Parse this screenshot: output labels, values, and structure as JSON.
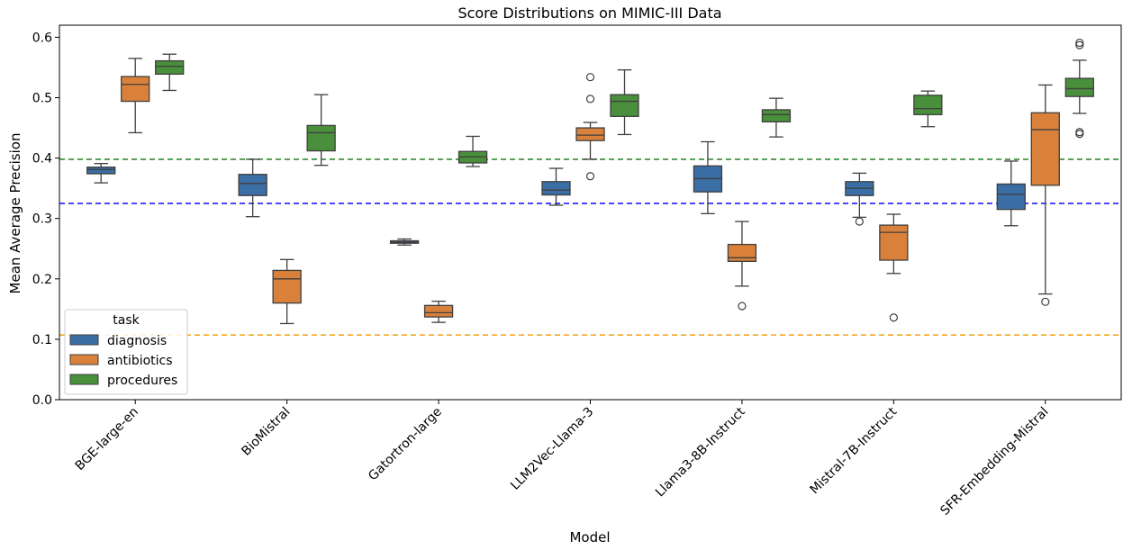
{
  "chart_data": {
    "type": "box",
    "title": "Score Distributions on MIMIC-III Data",
    "xlabel": "Model",
    "ylabel": "Mean Average Precision",
    "ylim": [
      0.0,
      0.62
    ],
    "yticks": [
      "0.0",
      "0.1",
      "0.2",
      "0.3",
      "0.4",
      "0.5",
      "0.6"
    ],
    "categories": [
      "BGE-large-en",
      "BioMistral",
      "Gatortron-large",
      "LLM2Vec-Llama-3",
      "Llama3-8B-Instruct",
      "Mistral-7B-Instruct",
      "SFR-Embedding-Mistral"
    ],
    "legend": {
      "title": "task",
      "position": "lower-left"
    },
    "series": [
      {
        "name": "diagnosis",
        "color": "#3a6ea5",
        "boxes": [
          {
            "whislo": 0.359,
            "q1": 0.374,
            "med": 0.381,
            "q3": 0.385,
            "whishi": 0.391,
            "fliers": []
          },
          {
            "whislo": 0.303,
            "q1": 0.338,
            "med": 0.358,
            "q3": 0.373,
            "whishi": 0.398,
            "fliers": []
          },
          {
            "whislo": 0.256,
            "q1": 0.259,
            "med": 0.261,
            "q3": 0.263,
            "whishi": 0.266,
            "fliers": []
          },
          {
            "whislo": 0.322,
            "q1": 0.339,
            "med": 0.347,
            "q3": 0.361,
            "whishi": 0.383,
            "fliers": []
          },
          {
            "whislo": 0.308,
            "q1": 0.344,
            "med": 0.366,
            "q3": 0.387,
            "whishi": 0.427,
            "fliers": []
          },
          {
            "whislo": 0.302,
            "q1": 0.338,
            "med": 0.35,
            "q3": 0.361,
            "whishi": 0.375,
            "fliers": [
              0.295
            ]
          },
          {
            "whislo": 0.288,
            "q1": 0.315,
            "med": 0.34,
            "q3": 0.357,
            "whishi": 0.395,
            "fliers": []
          }
        ]
      },
      {
        "name": "antibiotics",
        "color": "#d9813a",
        "boxes": [
          {
            "whislo": 0.442,
            "q1": 0.494,
            "med": 0.522,
            "q3": 0.535,
            "whishi": 0.565,
            "fliers": []
          },
          {
            "whislo": 0.126,
            "q1": 0.16,
            "med": 0.2,
            "q3": 0.214,
            "whishi": 0.232,
            "fliers": []
          },
          {
            "whislo": 0.128,
            "q1": 0.137,
            "med": 0.144,
            "q3": 0.156,
            "whishi": 0.163,
            "fliers": []
          },
          {
            "whislo": 0.398,
            "q1": 0.429,
            "med": 0.438,
            "q3": 0.45,
            "whishi": 0.459,
            "fliers": [
              0.37,
              0.498,
              0.534
            ]
          },
          {
            "whislo": 0.188,
            "q1": 0.229,
            "med": 0.235,
            "q3": 0.257,
            "whishi": 0.295,
            "fliers": [
              0.155
            ]
          },
          {
            "whislo": 0.209,
            "q1": 0.231,
            "med": 0.277,
            "q3": 0.289,
            "whishi": 0.307,
            "fliers": [
              0.136
            ]
          },
          {
            "whislo": 0.175,
            "q1": 0.355,
            "med": 0.447,
            "q3": 0.475,
            "whishi": 0.521,
            "fliers": [
              0.162
            ]
          }
        ]
      },
      {
        "name": "procedures",
        "color": "#4a8f3c",
        "boxes": [
          {
            "whislo": 0.512,
            "q1": 0.539,
            "med": 0.552,
            "q3": 0.561,
            "whishi": 0.572,
            "fliers": []
          },
          {
            "whislo": 0.388,
            "q1": 0.412,
            "med": 0.442,
            "q3": 0.454,
            "whishi": 0.505,
            "fliers": []
          },
          {
            "whislo": 0.386,
            "q1": 0.392,
            "med": 0.402,
            "q3": 0.411,
            "whishi": 0.436,
            "fliers": []
          },
          {
            "whislo": 0.439,
            "q1": 0.469,
            "med": 0.494,
            "q3": 0.505,
            "whishi": 0.546,
            "fliers": []
          },
          {
            "whislo": 0.435,
            "q1": 0.46,
            "med": 0.472,
            "q3": 0.48,
            "whishi": 0.499,
            "fliers": []
          },
          {
            "whislo": 0.452,
            "q1": 0.472,
            "med": 0.482,
            "q3": 0.504,
            "whishi": 0.511,
            "fliers": []
          },
          {
            "whislo": 0.474,
            "q1": 0.502,
            "med": 0.515,
            "q3": 0.532,
            "whishi": 0.562,
            "fliers": [
              0.44,
              0.443,
              0.587,
              0.591
            ]
          }
        ]
      }
    ],
    "reference_lines": [
      {
        "value": 0.398,
        "color": "#2e8b2e",
        "style": "dashed"
      },
      {
        "value": 0.325,
        "color": "#1f1fff",
        "style": "dashed"
      },
      {
        "value": 0.107,
        "color": "#f5a623",
        "style": "dashed"
      }
    ],
    "grid": false
  }
}
